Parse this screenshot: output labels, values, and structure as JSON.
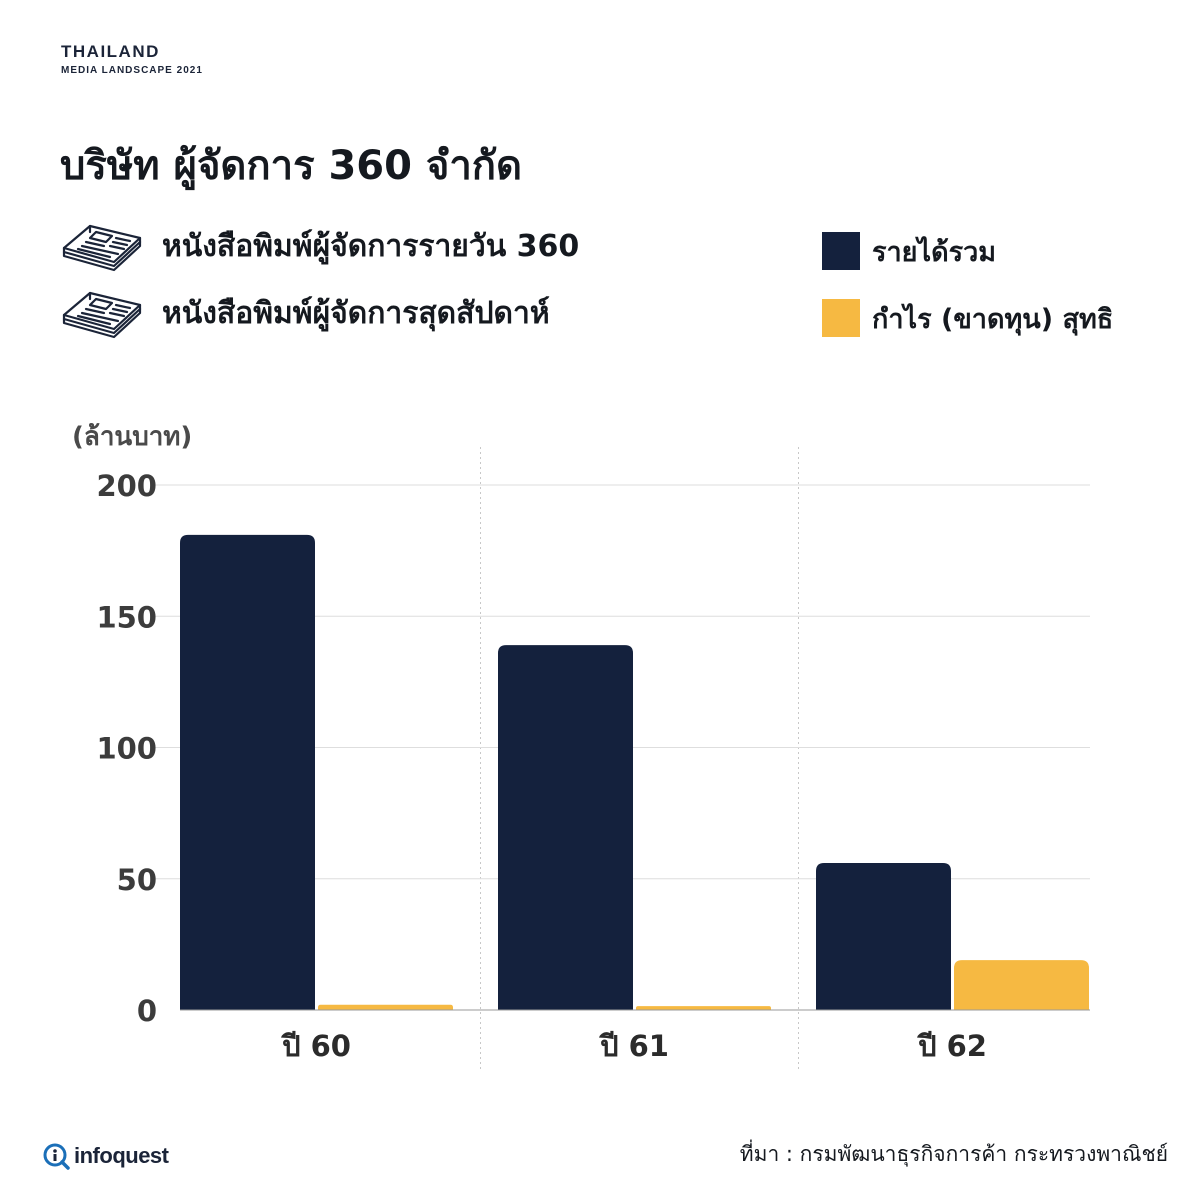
{
  "brand": {
    "line1": "THAILAND",
    "line2": "MEDIA LANDSCAPE 2021"
  },
  "title": "บริษัท ผู้จัดการ 360 จำกัด",
  "publications": [
    {
      "label": "หนังสือพิมพ์ผู้จัดการรายวัน 360",
      "icon": "newspaper-icon"
    },
    {
      "label": "หนังสือพิมพ์ผู้จัดการสุดสัปดาห์",
      "icon": "newspaper-icon"
    }
  ],
  "legend": [
    {
      "label": "รายได้รวม",
      "color": "#14213d"
    },
    {
      "label": "กำไร (ขาดทุน) สุทธิ",
      "color": "#f6b942"
    }
  ],
  "chart_data": {
    "type": "bar",
    "categories": [
      "ปี 60",
      "ปี 61",
      "ปี 62"
    ],
    "series": [
      {
        "name": "รายได้รวม",
        "values": [
          181,
          139,
          56
        ],
        "color": "#14213d"
      },
      {
        "name": "กำไร (ขาดทุน) สุทธิ",
        "values": [
          2,
          1.5,
          19
        ],
        "color": "#f6b942"
      }
    ],
    "ylabel": "(ล้านบาท)",
    "yticks": [
      0,
      50,
      100,
      150,
      200
    ],
    "ylim": [
      0,
      200
    ],
    "grid": true
  },
  "footer": {
    "logo_text": "infoquest",
    "source": "ที่มา : กรมพัฒนาธุรกิจการค้า กระทรวงพาณิชย์"
  }
}
